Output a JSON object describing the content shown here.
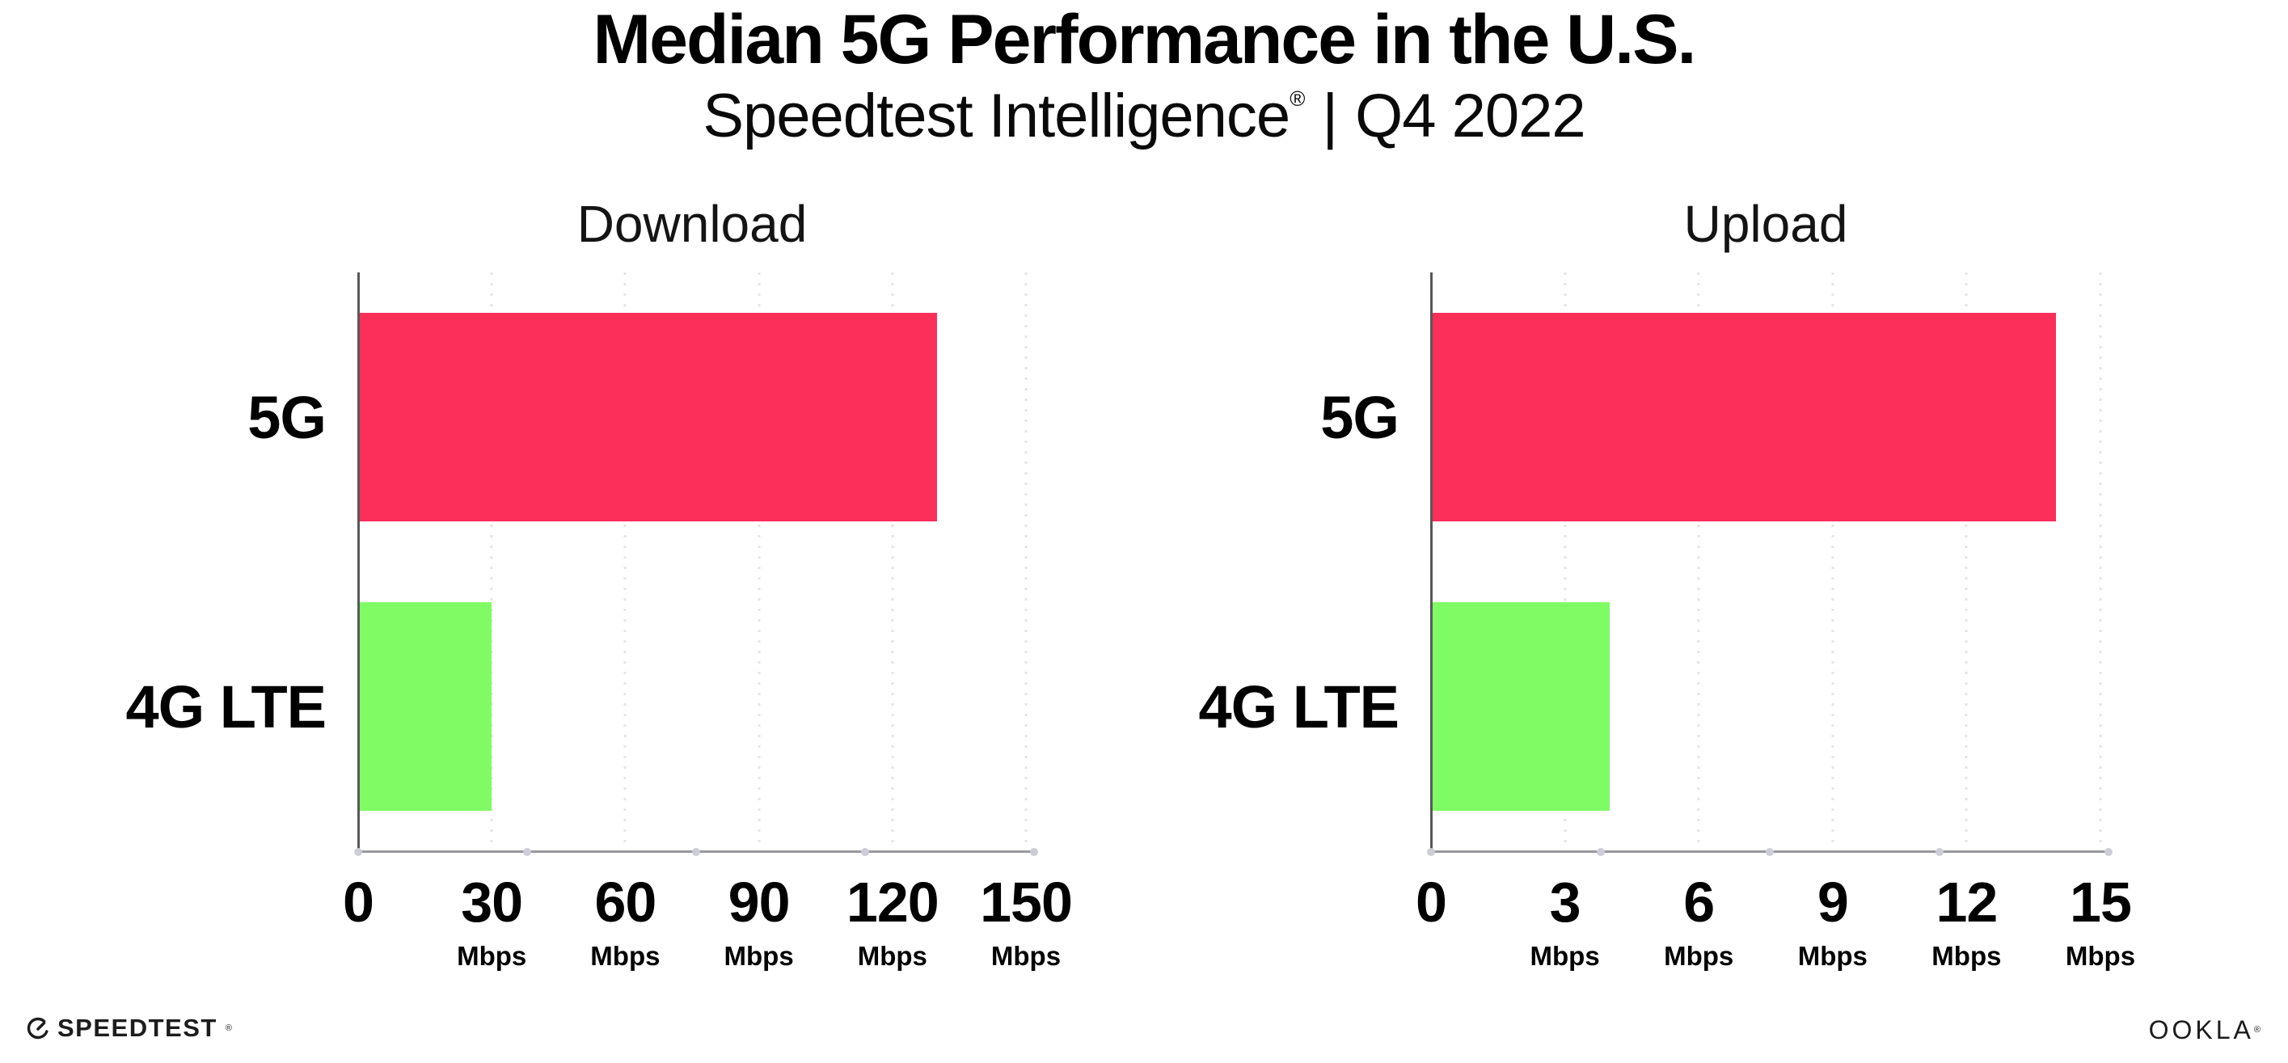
{
  "header": {
    "title": "Median 5G Performance in the U.S.",
    "subtitle": {
      "brand": "Speedtest Intelligence",
      "registered": "®",
      "separator": "|",
      "period": "Q4 2022"
    }
  },
  "chart_data": [
    {
      "type": "bar",
      "orientation": "horizontal",
      "title": "Download",
      "categories": [
        "5G",
        "4G LTE"
      ],
      "values": [
        130,
        30
      ],
      "unit": "Mbps",
      "xlabel": "",
      "ylabel": "",
      "xlim": [
        0,
        150
      ],
      "xticks": [
        0,
        30,
        60,
        90,
        120,
        150
      ],
      "bar_colors": [
        "#fc2e5a",
        "#7ffb63"
      ],
      "grid": "dotted-vertical",
      "legend": "none"
    },
    {
      "type": "bar",
      "orientation": "horizontal",
      "title": "Upload",
      "categories": [
        "5G",
        "4G LTE"
      ],
      "values": [
        14,
        4
      ],
      "unit": "Mbps",
      "xlabel": "",
      "ylabel": "",
      "xlim": [
        0,
        15
      ],
      "xticks": [
        0,
        3,
        6,
        9,
        12,
        15
      ],
      "bar_colors": [
        "#fc2e5a",
        "#7ffb63"
      ],
      "grid": "dotted-vertical",
      "legend": "none"
    }
  ],
  "footer": {
    "speedtest": {
      "label": "SPEEDTEST",
      "registered": "®"
    },
    "ookla": {
      "label": "OOKLA",
      "registered": "®"
    }
  },
  "colors": {
    "bar_5g": "#fc2e5a",
    "bar_4g_lte": "#7ffb63",
    "background": "#ffffff",
    "text": "#000000",
    "axis_line": "#98989f",
    "gridline": "#e4e4ee"
  }
}
